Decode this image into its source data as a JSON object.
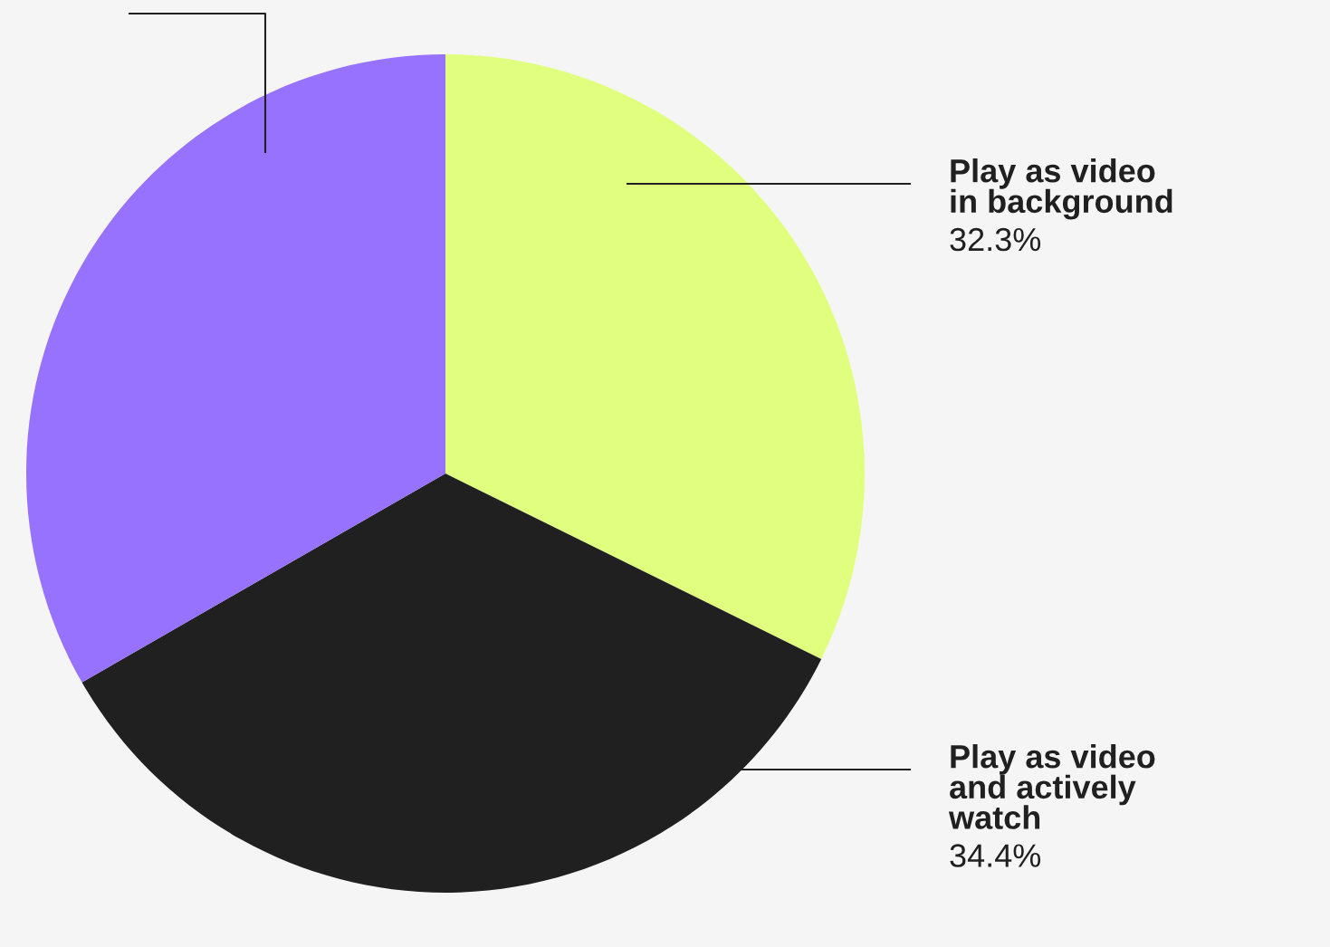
{
  "chart_data": {
    "type": "pie",
    "categories": [
      "Play as video\nin background",
      "Play as video\nand actively\nwatch",
      null
    ],
    "values": [
      32.3,
      34.4,
      33.3
    ],
    "colors": [
      "#e0ff7f",
      "#202020",
      "#9672ff"
    ],
    "value_labels": [
      "32.3%",
      "34.4%",
      null
    ],
    "legend": false
  }
}
